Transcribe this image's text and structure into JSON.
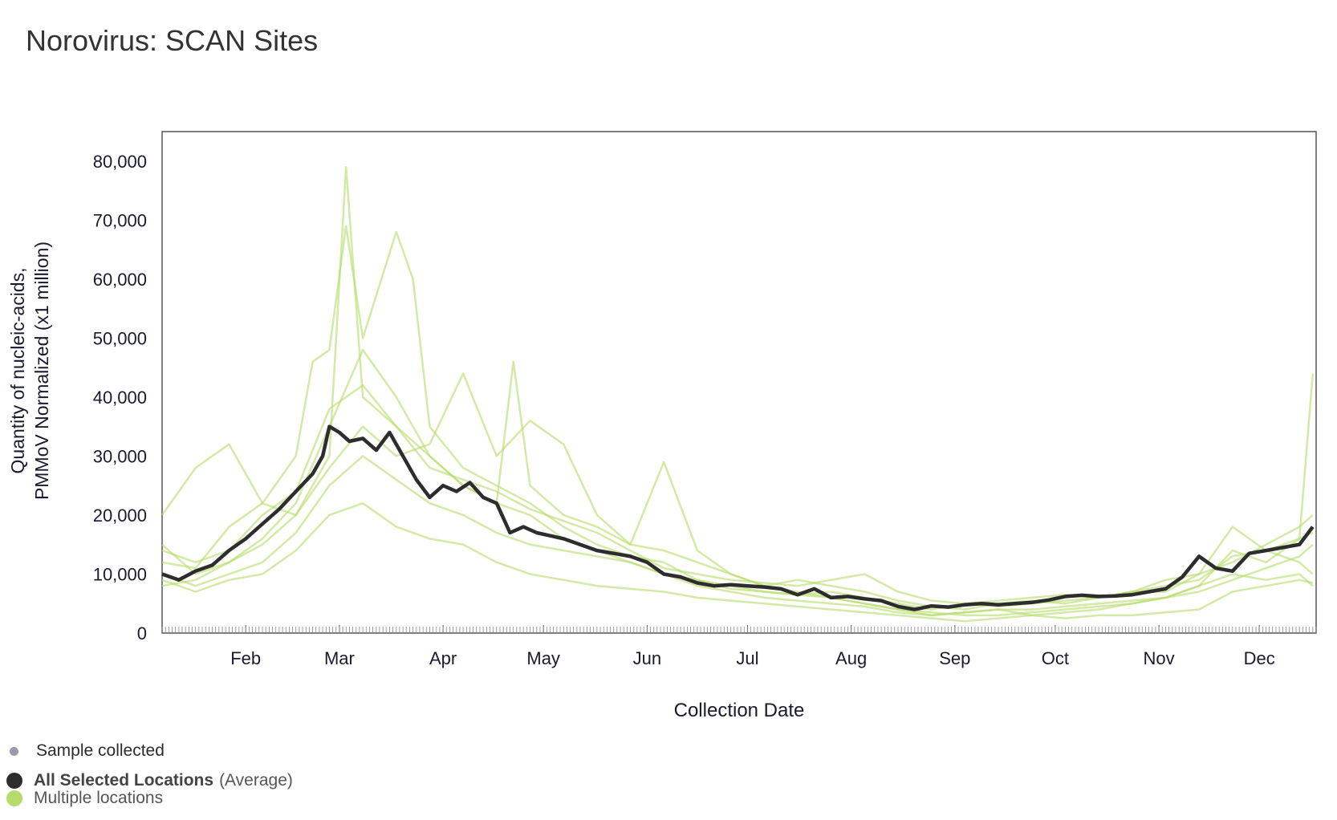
{
  "page": {
    "title": "Norovirus: SCAN Sites"
  },
  "colors": {
    "average": "#2d2d2d",
    "locations": "#b5dc6b",
    "sample": "#9a9aa8",
    "frame": "#555555"
  },
  "legend": {
    "sample_collected": "Sample collected",
    "average_label": "All Selected Locations",
    "average_suffix": "(Average)",
    "multiple_locations": "Multiple locations"
  },
  "chart_data": {
    "type": "line",
    "title": "Norovirus: SCAN Sites",
    "xlabel": "Collection Date",
    "ylabel_lines": [
      "Quantity of nucleic-acids,",
      "PMMoV Normalized (x1 million)"
    ],
    "ylim": [
      0,
      85000
    ],
    "yticks": [
      0,
      10000,
      20000,
      30000,
      40000,
      50000,
      60000,
      70000,
      80000
    ],
    "ytick_labels": [
      "0",
      "10,000",
      "20,000",
      "30,000",
      "40,000",
      "50,000",
      "60,000",
      "70,000",
      "80,000"
    ],
    "xlim_days": [
      0,
      345
    ],
    "xticks_days": [
      25,
      53,
      84,
      114,
      145,
      175,
      206,
      237,
      267,
      298,
      328
    ],
    "xtick_labels": [
      "Feb",
      "Mar",
      "Apr",
      "May",
      "Jun",
      "Jul",
      "Aug",
      "Sep",
      "Oct",
      "Nov",
      "Dec"
    ],
    "grid": false,
    "series": [
      {
        "name": "All Selected Locations (Average)",
        "role": "average",
        "x": [
          0,
          5,
          10,
          15,
          20,
          25,
          30,
          35,
          40,
          45,
          48,
          50,
          53,
          56,
          60,
          64,
          68,
          72,
          76,
          80,
          84,
          88,
          92,
          96,
          100,
          104,
          108,
          112,
          116,
          120,
          125,
          130,
          135,
          140,
          145,
          150,
          155,
          160,
          165,
          170,
          175,
          180,
          185,
          190,
          195,
          200,
          205,
          210,
          215,
          220,
          225,
          230,
          235,
          240,
          245,
          250,
          255,
          260,
          265,
          270,
          275,
          280,
          285,
          290,
          295,
          300,
          305,
          310,
          315,
          320,
          325,
          330,
          335,
          340,
          344
        ],
        "values": [
          10000,
          9000,
          10500,
          11500,
          14000,
          16000,
          18500,
          21000,
          24000,
          27000,
          30000,
          35000,
          34000,
          32500,
          33000,
          31000,
          34000,
          30000,
          26000,
          23000,
          25000,
          24000,
          25500,
          23000,
          22000,
          17000,
          18000,
          17000,
          16500,
          16000,
          15000,
          14000,
          13500,
          13000,
          12000,
          10000,
          9500,
          8500,
          8000,
          8200,
          8000,
          7800,
          7500,
          6500,
          7500,
          6000,
          6200,
          5800,
          5500,
          4500,
          4000,
          4600,
          4400,
          4800,
          5000,
          4800,
          5000,
          5200,
          5600,
          6200,
          6400,
          6200,
          6300,
          6500,
          7000,
          7500,
          9500,
          13000,
          11000,
          10500,
          13500,
          14000,
          14500,
          15000,
          18000
        ]
      }
    ],
    "location_series_note": "Multiple locations",
    "location_series": [
      {
        "x": [
          0,
          10,
          20,
          30,
          40,
          50,
          55,
          60,
          70,
          80,
          90,
          100,
          110,
          120,
          130,
          140,
          150,
          160,
          170,
          180,
          190,
          200,
          210,
          220,
          230,
          240,
          250,
          260,
          270,
          280,
          290,
          300,
          310,
          320,
          330,
          340,
          344
        ],
        "values": [
          20000,
          28000,
          32000,
          22000,
          20000,
          30000,
          79000,
          40000,
          35000,
          30000,
          25000,
          22000,
          20000,
          16000,
          14000,
          12000,
          10000,
          8000,
          7000,
          6000,
          5500,
          5000,
          4500,
          3500,
          3000,
          3500,
          4000,
          4000,
          4500,
          5000,
          5500,
          6000,
          8000,
          14000,
          12000,
          16000,
          44000
        ]
      },
      {
        "x": [
          0,
          10,
          20,
          30,
          40,
          45,
          50,
          55,
          60,
          70,
          75,
          80,
          90,
          100,
          110,
          120,
          130,
          140,
          150,
          160,
          170,
          180,
          190,
          200,
          210,
          220,
          230,
          240,
          250,
          260,
          270,
          280,
          290,
          300,
          310,
          320,
          330,
          340,
          344
        ],
        "values": [
          12000,
          11000,
          18000,
          22000,
          30000,
          46000,
          48000,
          69000,
          50000,
          68000,
          60000,
          35000,
          28000,
          25000,
          22000,
          18000,
          15000,
          13000,
          12000,
          9000,
          8000,
          7000,
          6500,
          7000,
          6000,
          5000,
          4000,
          5000,
          4500,
          5000,
          5500,
          6000,
          7000,
          7000,
          10000,
          18000,
          14000,
          12000,
          10000
        ]
      },
      {
        "x": [
          0,
          10,
          20,
          30,
          40,
          50,
          60,
          70,
          80,
          90,
          100,
          110,
          120,
          130,
          140,
          150,
          160,
          170,
          180,
          190,
          200,
          210,
          220,
          230,
          240,
          250,
          260,
          270,
          280,
          290,
          300,
          310,
          320,
          330,
          340,
          344
        ],
        "values": [
          15000,
          10000,
          12000,
          15000,
          20000,
          28000,
          35000,
          30000,
          32000,
          44000,
          30000,
          36000,
          32000,
          20000,
          15000,
          14000,
          12000,
          10000,
          8000,
          9000,
          8000,
          7000,
          5500,
          4500,
          4000,
          5000,
          5500,
          5000,
          6000,
          7000,
          9000,
          10000,
          12000,
          15000,
          18000,
          20000
        ]
      },
      {
        "x": [
          0,
          10,
          20,
          30,
          40,
          50,
          60,
          70,
          80,
          90,
          100,
          105,
          110,
          120,
          130,
          140,
          150,
          160,
          170,
          180,
          190,
          200,
          210,
          220,
          230,
          240,
          250,
          260,
          270,
          280,
          290,
          300,
          310,
          320,
          330,
          340,
          344
        ],
        "values": [
          8000,
          9000,
          12000,
          16000,
          22000,
          35000,
          48000,
          40000,
          30000,
          25000,
          22000,
          46000,
          25000,
          20000,
          18000,
          15000,
          29000,
          14000,
          10000,
          8000,
          7000,
          6000,
          5000,
          4000,
          3000,
          3500,
          4000,
          3000,
          3500,
          4000,
          5000,
          6000,
          8000,
          10000,
          9000,
          10000,
          8000
        ]
      },
      {
        "x": [
          0,
          10,
          20,
          30,
          40,
          50,
          60,
          70,
          80,
          90,
          100,
          110,
          120,
          130,
          140,
          150,
          160,
          170,
          180,
          190,
          200,
          210,
          220,
          230,
          240,
          250,
          260,
          270,
          280,
          290,
          300,
          310,
          320,
          330,
          340,
          344
        ],
        "values": [
          10000,
          8000,
          10000,
          12000,
          17000,
          25000,
          30000,
          26000,
          22000,
          20000,
          17000,
          15000,
          14000,
          13000,
          12000,
          10000,
          9000,
          7500,
          7000,
          6500,
          6000,
          5000,
          4000,
          3500,
          3000,
          3000,
          3500,
          4000,
          4500,
          5000,
          6000,
          7000,
          9000,
          11000,
          13000,
          15000
        ]
      },
      {
        "x": [
          0,
          10,
          20,
          30,
          40,
          50,
          60,
          70,
          80,
          90,
          100,
          110,
          120,
          130,
          140,
          150,
          160,
          170,
          180,
          190,
          200,
          210,
          220,
          230,
          240,
          250,
          260,
          270,
          280,
          290,
          300,
          310,
          320,
          330,
          340,
          344
        ],
        "values": [
          14000,
          12000,
          14000,
          20000,
          24000,
          38000,
          42000,
          35000,
          28000,
          26000,
          24000,
          21000,
          19000,
          17000,
          14000,
          11000,
          10000,
          9000,
          8500,
          8000,
          9000,
          10000,
          7000,
          5500,
          5000,
          5500,
          6000,
          6500,
          6000,
          7000,
          8000,
          9000,
          13000,
          14000,
          16000,
          17000
        ]
      },
      {
        "x": [
          0,
          10,
          20,
          30,
          40,
          50,
          60,
          70,
          80,
          90,
          100,
          110,
          120,
          130,
          140,
          150,
          160,
          170,
          180,
          190,
          200,
          210,
          220,
          230,
          240,
          250,
          260,
          270,
          280,
          290,
          300,
          310,
          320,
          330,
          340,
          344
        ],
        "values": [
          9000,
          7000,
          9000,
          10000,
          14000,
          20000,
          22000,
          18000,
          16000,
          15000,
          12000,
          10000,
          9000,
          8000,
          7500,
          7000,
          6000,
          5500,
          5000,
          4500,
          4000,
          3500,
          3000,
          2500,
          2000,
          2500,
          3000,
          2500,
          3000,
          3000,
          3500,
          4000,
          7000,
          8000,
          9000,
          8500
        ]
      }
    ]
  }
}
